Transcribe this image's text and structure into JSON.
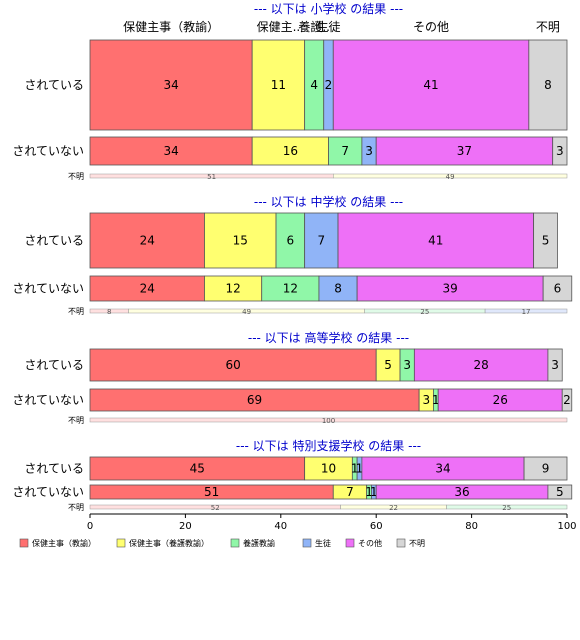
{
  "chart_data": {
    "type": "bar",
    "orientation": "horizontal-stacked",
    "categories": [
      "保健主事（教諭）",
      "保健主事（養護教諭）",
      "養護教諭",
      "生徒",
      "その他",
      "不明"
    ],
    "top_labels": [
      "保健主事（教諭）",
      "保健主..",
      "養護..",
      "生徒",
      "その他",
      "不明"
    ],
    "colors": [
      "#ff7070",
      "#ffff70",
      "#90f7a8",
      "#90b4f7",
      "#ee70f7",
      "#d6d6d6"
    ],
    "xlim": [
      0,
      100
    ],
    "x_ticks": [
      "0",
      "20",
      "40",
      "60",
      "80",
      "100"
    ],
    "missing_label": "不明",
    "sections": [
      {
        "title": "--- 以下は 小学校 の結果 ---",
        "rows": [
          {
            "label": "されている",
            "values": [
              34,
              11,
              4,
              2,
              41,
              8
            ]
          },
          {
            "label": "されていない",
            "values": [
              34,
              16,
              7,
              3,
              37,
              3
            ]
          }
        ],
        "missing": [
          51,
          49
        ]
      },
      {
        "title": "--- 以下は 中学校 の結果 ---",
        "rows": [
          {
            "label": "されている",
            "values": [
              24,
              15,
              6,
              7,
              41,
              5
            ]
          },
          {
            "label": "されていない",
            "values": [
              24,
              12,
              12,
              8,
              39,
              6
            ]
          }
        ],
        "missing": [
          8,
          49,
          25,
          17
        ]
      },
      {
        "title": "--- 以下は 高等学校 の結果 ---",
        "rows": [
          {
            "label": "されている",
            "values": [
              60,
              5,
              3,
              0,
              28,
              3
            ]
          },
          {
            "label": "されていない",
            "values": [
              69,
              3,
              1,
              0,
              26,
              2
            ]
          }
        ],
        "missing": [
          100
        ]
      },
      {
        "title": "--- 以下は 特別支援学校 の結果 ---",
        "rows": [
          {
            "label": "されている",
            "values": [
              45,
              10,
              1,
              1,
              34,
              9
            ]
          },
          {
            "label": "されていない",
            "values": [
              51,
              7,
              1,
              1,
              36,
              5
            ]
          }
        ],
        "missing": [
          52,
          22,
          25
        ]
      }
    ],
    "legend": [
      "保健主事（教諭）",
      "保健主事（養護教諭）",
      "養護教諭",
      "生徒",
      "その他",
      "不明"
    ],
    "legend_position": "bottom"
  }
}
